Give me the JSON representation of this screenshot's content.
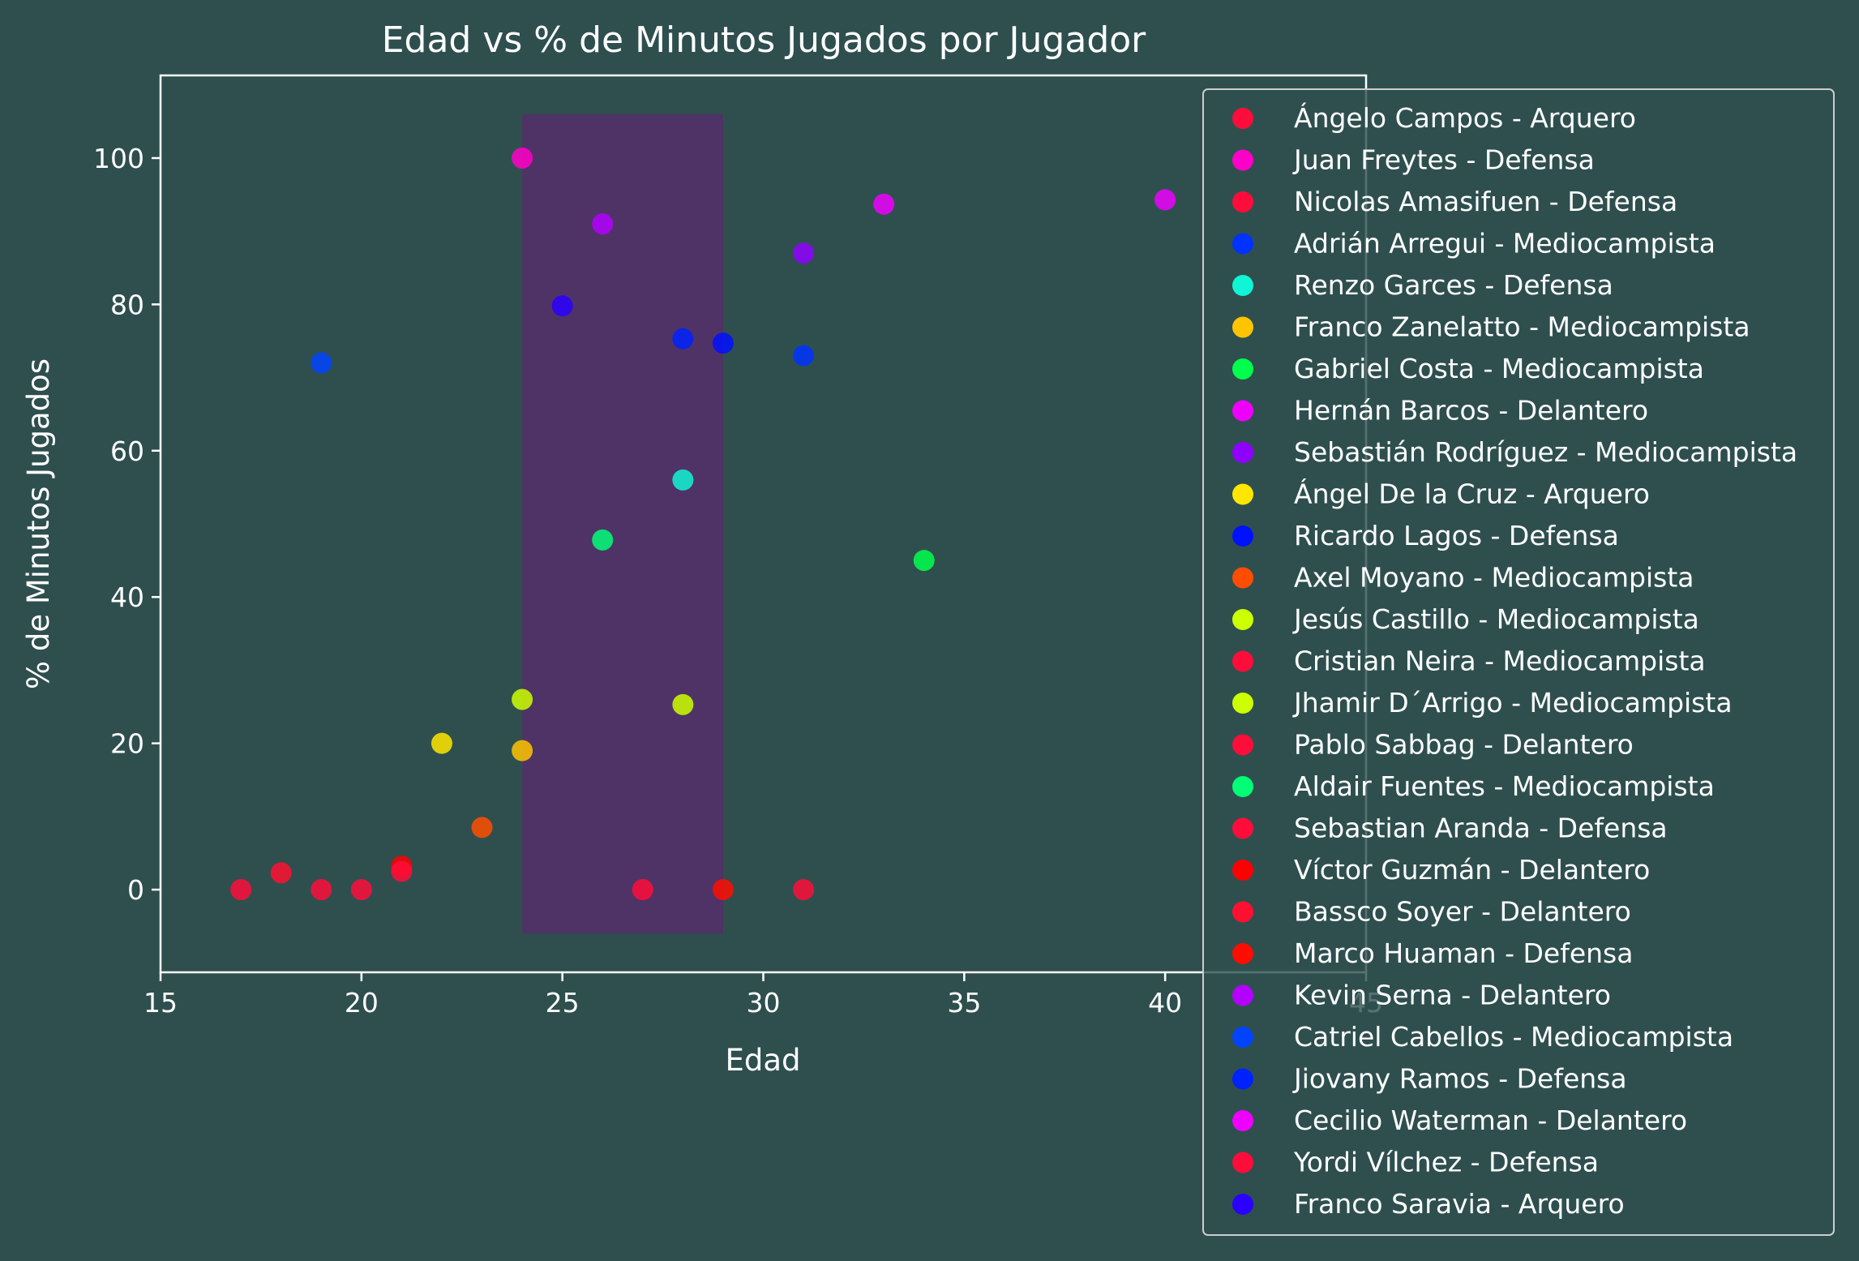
{
  "chart_data": {
    "type": "scatter",
    "title": "Edad vs % de Minutos Jugados por Jugador",
    "xlabel": "Edad",
    "ylabel": "% de Minutos Jugados",
    "xlim": [
      15,
      45
    ],
    "ylim": [
      -11.3,
      111.3
    ],
    "xticks": [
      15,
      20,
      25,
      30,
      35,
      40,
      45
    ],
    "yticks": [
      0,
      20,
      40,
      60,
      80,
      100
    ],
    "grid": false,
    "legend_position": "right",
    "highlight_band": {
      "x_range": [
        24,
        29
      ],
      "y_range": [
        -6,
        106
      ],
      "color": "#5b2a6e"
    },
    "colors": {
      "background": "#2f4f4f",
      "axes": "#ffffff",
      "text": "#ffffff"
    },
    "series": [
      {
        "name": "Ángelo Campos - Arquero",
        "color": "#ff0d3a",
        "x": 17,
        "y": 0
      },
      {
        "name": "Juan Freytes - Defensa",
        "color": "#ff00c8",
        "x": 24,
        "y": 100
      },
      {
        "name": "Nicolas Amasifuen - Defensa",
        "color": "#ff0d3a",
        "x": 19,
        "y": 0
      },
      {
        "name": "Adrián Arregui - Mediocampista",
        "color": "#0033ff",
        "x": 31,
        "y": 73
      },
      {
        "name": "Renzo Garces - Defensa",
        "color": "#10f5d5",
        "x": 28,
        "y": 56
      },
      {
        "name": "Franco Zanelatto - Mediocampista",
        "color": "#ffc400",
        "x": 24,
        "y": 19
      },
      {
        "name": "Gabriel Costa - Mediocampista",
        "color": "#00ff4c",
        "x": 34,
        "y": 45
      },
      {
        "name": "Hernán Barcos - Delantero",
        "color": "#ee00ff",
        "x": 33,
        "y": 93.7
      },
      {
        "name": "Sebastián Rodríguez - Mediocampista",
        "color": "#8f00ff",
        "x": 31,
        "y": 87
      },
      {
        "name": "Ángel De la Cruz - Arquero",
        "color": "#ffe600",
        "x": 22,
        "y": 20
      },
      {
        "name": "Ricardo Lagos - Defensa",
        "color": "#0011ff",
        "x": 29,
        "y": 74.7
      },
      {
        "name": "Axel Moyano - Mediocampista",
        "color": "#ff4d00",
        "x": 23,
        "y": 8.5
      },
      {
        "name": "Jesús Castillo - Mediocampista",
        "color": "#ccff00",
        "x": 24,
        "y": 26
      },
      {
        "name": "Cristian Neira - Mediocampista",
        "color": "#ff0d3a",
        "x": 20,
        "y": 0
      },
      {
        "name": "Jhamir D´Arrigo - Mediocampista",
        "color": "#ccff00",
        "x": 28,
        "y": 25.3
      },
      {
        "name": "Pablo Sabbag - Delantero",
        "color": "#ff0d3a",
        "x": 27,
        "y": 0
      },
      {
        "name": "Aldair Fuentes - Mediocampista",
        "color": "#00ff77",
        "x": 26,
        "y": 47.8
      },
      {
        "name": "Sebastian Aranda - Defensa",
        "color": "#ff0d3a",
        "x": 31,
        "y": 0
      },
      {
        "name": "Víctor Guzmán - Delantero",
        "color": "#ff0000",
        "x": 21,
        "y": 3.2
      },
      {
        "name": "Bassco Soyer - Delantero",
        "color": "#ff1030",
        "x": 18,
        "y": 2.3
      },
      {
        "name": "Marco Huaman - Defensa",
        "color": "#ff0d00",
        "x": 29,
        "y": 0
      },
      {
        "name": "Kevin Serna - Delantero",
        "color": "#b300ff",
        "x": 26,
        "y": 91
      },
      {
        "name": "Catriel Cabellos - Mediocampista",
        "color": "#0044ff",
        "x": 19,
        "y": 72
      },
      {
        "name": "Jiovany Ramos - Defensa",
        "color": "#0022ff",
        "x": 28,
        "y": 75.3
      },
      {
        "name": "Cecilio Waterman - Delantero",
        "color": "#ee00ff",
        "x": 40,
        "y": 94.3
      },
      {
        "name": "Yordi Vílchez - Defensa",
        "color": "#ff0d3a",
        "x": 21,
        "y": 2.5
      },
      {
        "name": "Franco Saravia - Arquero",
        "color": "#2a00ff",
        "x": 25,
        "y": 79.8
      }
    ]
  }
}
